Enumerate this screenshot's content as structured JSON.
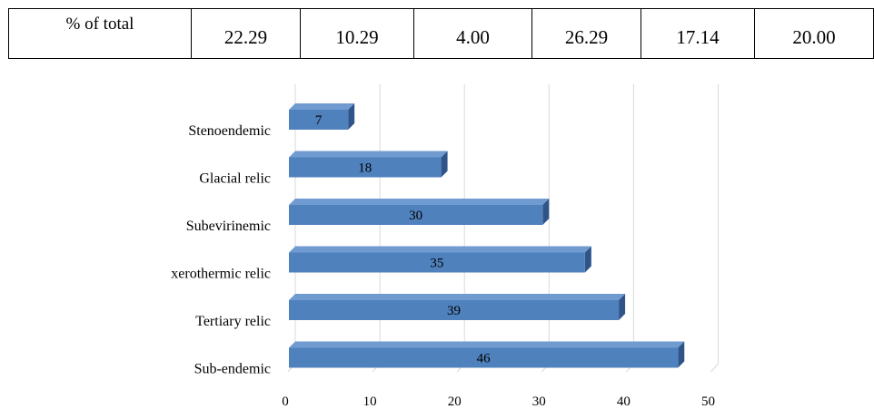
{
  "table": {
    "row_label": "% of total",
    "values": [
      "22.29",
      "10.29",
      "4.00",
      "26.29",
      "17.14",
      "20.00"
    ]
  },
  "chart_data": {
    "type": "bar",
    "orientation": "horizontal",
    "style": "3d",
    "categories": [
      "Stenoendemic",
      "Glacial relic",
      "Subevirinemic",
      "xerothermic relic",
      "Tertiary relic",
      "Sub-endemic"
    ],
    "values": [
      7,
      18,
      30,
      35,
      39,
      46
    ],
    "xlim": [
      0,
      50
    ],
    "xticks": [
      0,
      10,
      20,
      30,
      40,
      50
    ],
    "grid": true,
    "legend": "none",
    "colors": {
      "bar_front": "#4f81bd",
      "bar_top": "#6f9bd1",
      "bar_side": "#2f5489",
      "grid": "#d9d9d9"
    }
  }
}
